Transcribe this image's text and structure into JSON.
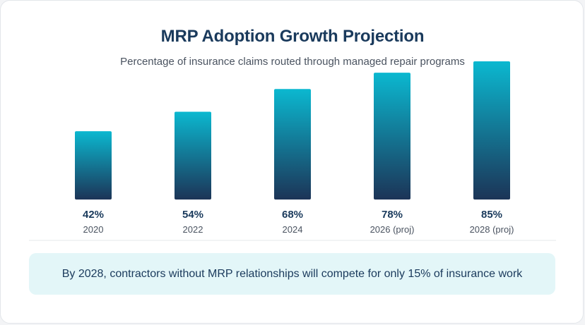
{
  "chart_data": {
    "type": "bar",
    "title": "MRP Adoption Growth Projection",
    "subtitle": "Percentage of insurance claims routed through managed repair programs",
    "categories": [
      "2020",
      "2022",
      "2024",
      "2026 (proj)",
      "2028 (proj)"
    ],
    "values": [
      42,
      54,
      68,
      78,
      85
    ],
    "value_labels": [
      "42%",
      "54%",
      "68%",
      "78%",
      "85%"
    ],
    "xlabel": "",
    "ylabel": "",
    "ylim": [
      0,
      85
    ],
    "grid": false,
    "legend": "none",
    "colors": {
      "bar_top": "#0bb8d0",
      "bar_bottom": "#1c3457",
      "value_text": "#1a3a5c",
      "category_text": "#4a5360",
      "baseline": "#e6e8eb"
    }
  },
  "callout": {
    "text": "By 2028, contractors without MRP relationships will compete for only 15% of insurance work"
  }
}
